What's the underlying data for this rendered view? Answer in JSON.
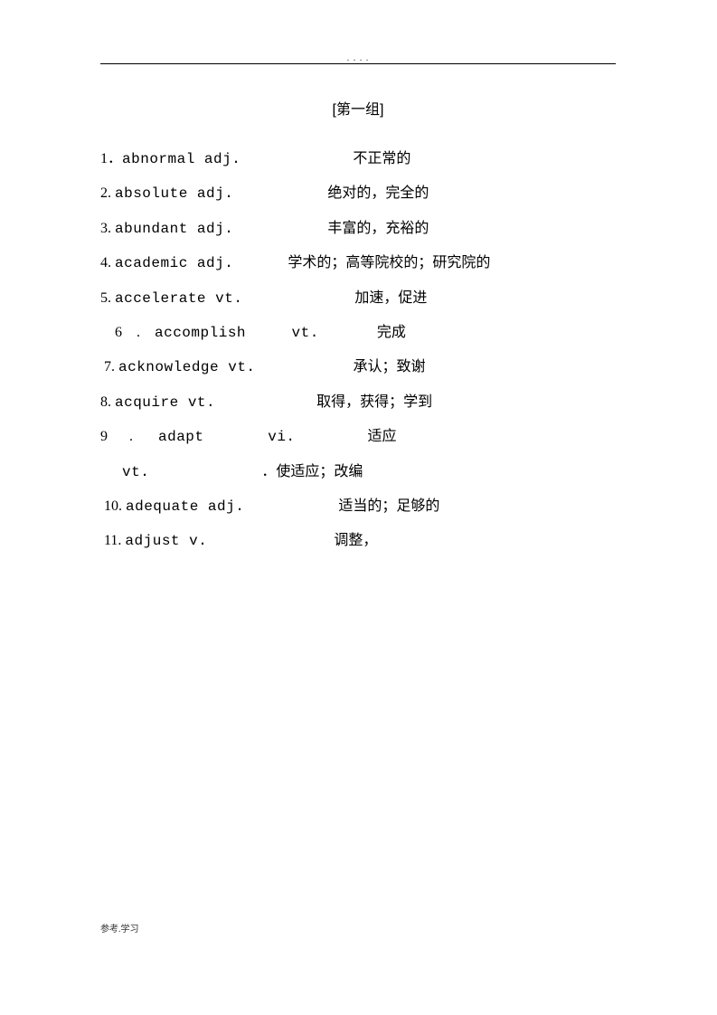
{
  "header_dots": ".          . .               .",
  "title": "[第一组]",
  "entries": [
    {
      "num": "1．",
      "word": "abnormal adj.",
      "spacer": "                               ",
      "def": "不正常的"
    },
    {
      "num": "2. ",
      "word": "absolute adj.",
      "spacer": "                          ",
      "def": "绝对的，完全的"
    },
    {
      "num": "3. ",
      "word": "abundant adj.",
      "spacer": "                          ",
      "def": "丰富的，充裕的"
    },
    {
      "num": "4. ",
      "word": "academic adj.",
      "spacer": "               ",
      "def": "学术的；高等院校的；研究院的"
    },
    {
      "num": "5. ",
      "word": "accelerate vt.",
      "spacer": "                               ",
      "def": "加速，促进"
    },
    {
      "num": "    6    .    ",
      "word": "accomplish     vt.",
      "spacer": "                ",
      "def": "完成"
    },
    {
      "num": " 7. ",
      "word": "acknowledge vt.",
      "spacer": "                           ",
      "def": "承认；致谢"
    },
    {
      "num": "8. ",
      "word": "acquire vt.",
      "spacer": "                            ",
      "def": "取得，获得；学到"
    },
    {
      "num": "9      .       ",
      "word": "adapt       vi.",
      "spacer": "                    ",
      "def": "适应"
    },
    {
      "num": "      ",
      "word": "vt.",
      "spacer": "                               ",
      "def": "．使适应；改编"
    },
    {
      "num": " 10. ",
      "word": "adequate adj.",
      "spacer": "                          ",
      "def": "适当的；足够的"
    },
    {
      "num": " 11. ",
      "word": "adjust v.",
      "spacer": "                                   ",
      "def": "调整，"
    }
  ],
  "footer": "参考.学习",
  "colors": {
    "text": "#000000",
    "background": "#ffffff"
  }
}
